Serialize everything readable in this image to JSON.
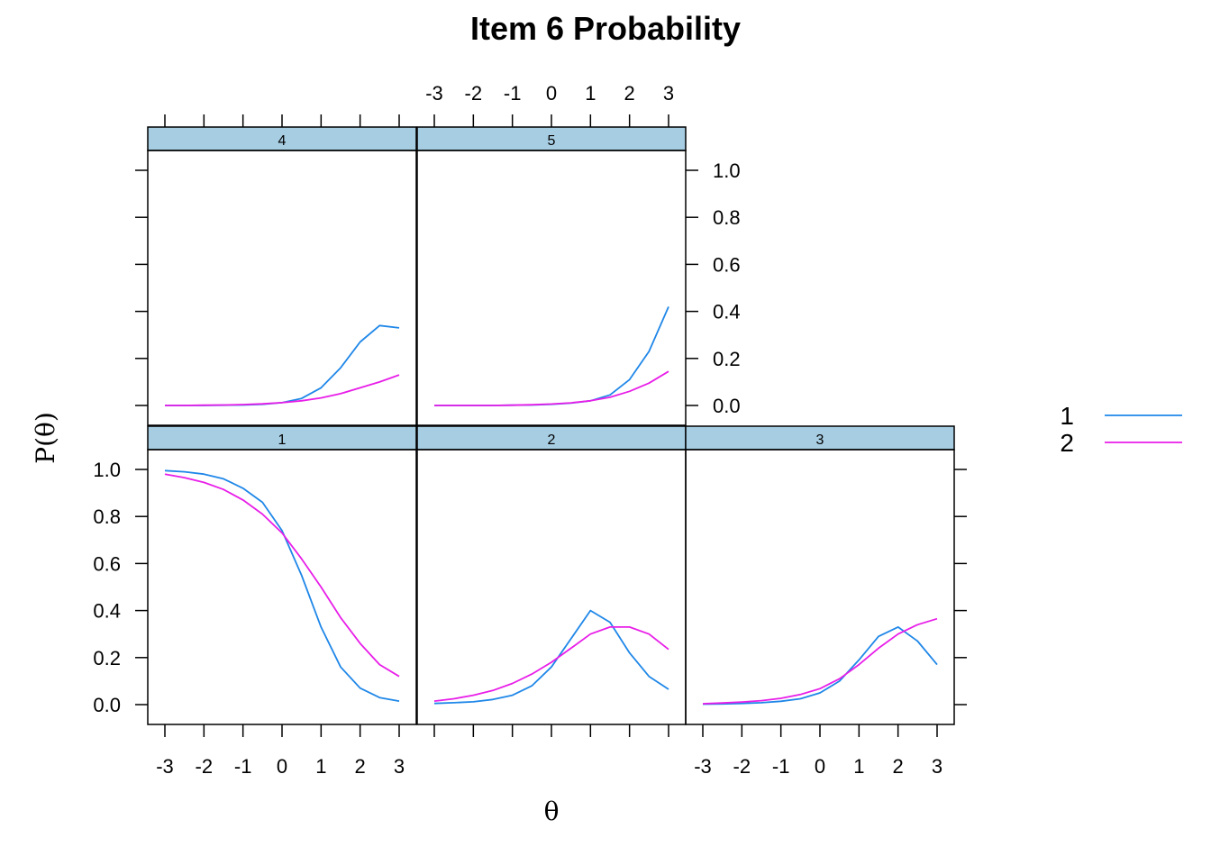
{
  "title": "Item 6 Probability",
  "xlabel": "θ",
  "ylabel": "P(θ)",
  "colors": {
    "series1": "#1f87e8",
    "series2": "#e81ee8",
    "strip": "#a6cde2"
  },
  "legend": [
    {
      "label": "1",
      "color": "#1f87e8"
    },
    {
      "label": "2",
      "color": "#e81ee8"
    }
  ],
  "chart_data": {
    "type": "line",
    "title": "Item 6 Probability",
    "xlabel": "θ",
    "ylabel": "P(θ)",
    "xlim": [
      -3,
      3
    ],
    "ylim": [
      0,
      1
    ],
    "x_ticks": [
      "-3",
      "-2",
      "-1",
      "0",
      "1",
      "2",
      "3"
    ],
    "y_ticks": [
      "0.0",
      "0.2",
      "0.4",
      "0.6",
      "0.8",
      "1.0"
    ],
    "legend_position": "right",
    "x": [
      -3,
      -2.5,
      -2,
      -1.5,
      -1,
      -0.5,
      0,
      0.5,
      1,
      1.5,
      2,
      2.5,
      3
    ],
    "panels": [
      {
        "label": "1",
        "series": [
          {
            "name": "1",
            "values": [
              0.995,
              0.99,
              0.98,
              0.96,
              0.92,
              0.86,
              0.74,
              0.55,
              0.33,
              0.16,
              0.07,
              0.03,
              0.015
            ]
          },
          {
            "name": "2",
            "values": [
              0.98,
              0.965,
              0.945,
              0.915,
              0.87,
              0.81,
              0.73,
              0.62,
              0.5,
              0.37,
              0.26,
              0.17,
              0.12
            ]
          }
        ]
      },
      {
        "label": "2",
        "series": [
          {
            "name": "1",
            "values": [
              0.005,
              0.008,
              0.012,
              0.022,
              0.04,
              0.08,
              0.16,
              0.28,
              0.4,
              0.35,
              0.22,
              0.12,
              0.065
            ]
          },
          {
            "name": "2",
            "values": [
              0.015,
              0.025,
              0.04,
              0.06,
              0.09,
              0.13,
              0.18,
              0.24,
              0.3,
              0.33,
              0.33,
              0.3,
              0.235
            ]
          }
        ]
      },
      {
        "label": "3",
        "series": [
          {
            "name": "1",
            "values": [
              0.002,
              0.003,
              0.005,
              0.008,
              0.014,
              0.025,
              0.05,
              0.1,
              0.19,
              0.29,
              0.33,
              0.27,
              0.17
            ]
          },
          {
            "name": "2",
            "values": [
              0.004,
              0.007,
              0.011,
              0.017,
              0.027,
              0.043,
              0.068,
              0.11,
              0.17,
              0.24,
              0.3,
              0.34,
              0.365
            ]
          }
        ]
      },
      {
        "label": "4",
        "series": [
          {
            "name": "1",
            "values": [
              0,
              0,
              0,
              0.001,
              0.002,
              0.005,
              0.012,
              0.03,
              0.075,
              0.16,
              0.27,
              0.34,
              0.33
            ]
          },
          {
            "name": "2",
            "values": [
              0,
              0,
              0.001,
              0.002,
              0.004,
              0.007,
              0.012,
              0.02,
              0.032,
              0.05,
              0.075,
              0.1,
              0.13
            ]
          }
        ]
      },
      {
        "label": "5",
        "series": [
          {
            "name": "1",
            "values": [
              0,
              0,
              0,
              0,
              0.001,
              0.002,
              0.005,
              0.01,
              0.02,
              0.045,
              0.11,
              0.23,
              0.42
            ]
          },
          {
            "name": "2",
            "values": [
              0,
              0,
              0,
              0,
              0.001,
              0.003,
              0.006,
              0.011,
              0.02,
              0.035,
              0.06,
              0.095,
              0.145
            ]
          }
        ]
      }
    ]
  }
}
